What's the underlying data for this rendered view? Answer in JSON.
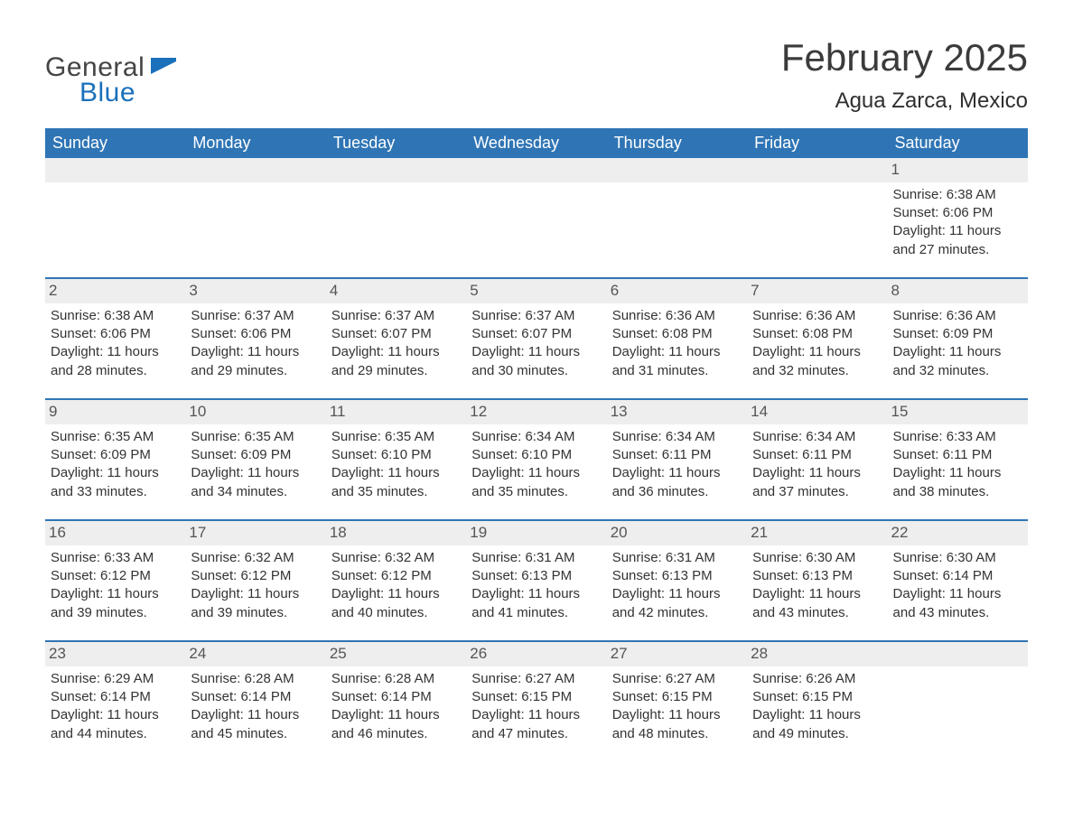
{
  "logo": {
    "word1": "General",
    "word2": "Blue"
  },
  "title": "February 2025",
  "location": "Agua Zarca, Mexico",
  "colors": {
    "header_bg": "#2f75b5",
    "header_text": "#ffffff",
    "daynum_bg": "#eeeeee",
    "body_text": "#333333",
    "logo_blue": "#1a70bb",
    "logo_gray": "#444444",
    "row_border": "#2f75b5"
  },
  "fonts": {
    "title_size_pt": 32,
    "location_size_pt": 18,
    "dayheader_size_pt": 14,
    "body_size_pt": 11
  },
  "day_headers": [
    "Sunday",
    "Monday",
    "Tuesday",
    "Wednesday",
    "Thursday",
    "Friday",
    "Saturday"
  ],
  "weeks": [
    [
      null,
      null,
      null,
      null,
      null,
      null,
      {
        "n": "1",
        "sr": "Sunrise: 6:38 AM",
        "ss": "Sunset: 6:06 PM",
        "dl": "Daylight: 11 hours and 27 minutes."
      }
    ],
    [
      {
        "n": "2",
        "sr": "Sunrise: 6:38 AM",
        "ss": "Sunset: 6:06 PM",
        "dl": "Daylight: 11 hours and 28 minutes."
      },
      {
        "n": "3",
        "sr": "Sunrise: 6:37 AM",
        "ss": "Sunset: 6:06 PM",
        "dl": "Daylight: 11 hours and 29 minutes."
      },
      {
        "n": "4",
        "sr": "Sunrise: 6:37 AM",
        "ss": "Sunset: 6:07 PM",
        "dl": "Daylight: 11 hours and 29 minutes."
      },
      {
        "n": "5",
        "sr": "Sunrise: 6:37 AM",
        "ss": "Sunset: 6:07 PM",
        "dl": "Daylight: 11 hours and 30 minutes."
      },
      {
        "n": "6",
        "sr": "Sunrise: 6:36 AM",
        "ss": "Sunset: 6:08 PM",
        "dl": "Daylight: 11 hours and 31 minutes."
      },
      {
        "n": "7",
        "sr": "Sunrise: 6:36 AM",
        "ss": "Sunset: 6:08 PM",
        "dl": "Daylight: 11 hours and 32 minutes."
      },
      {
        "n": "8",
        "sr": "Sunrise: 6:36 AM",
        "ss": "Sunset: 6:09 PM",
        "dl": "Daylight: 11 hours and 32 minutes."
      }
    ],
    [
      {
        "n": "9",
        "sr": "Sunrise: 6:35 AM",
        "ss": "Sunset: 6:09 PM",
        "dl": "Daylight: 11 hours and 33 minutes."
      },
      {
        "n": "10",
        "sr": "Sunrise: 6:35 AM",
        "ss": "Sunset: 6:09 PM",
        "dl": "Daylight: 11 hours and 34 minutes."
      },
      {
        "n": "11",
        "sr": "Sunrise: 6:35 AM",
        "ss": "Sunset: 6:10 PM",
        "dl": "Daylight: 11 hours and 35 minutes."
      },
      {
        "n": "12",
        "sr": "Sunrise: 6:34 AM",
        "ss": "Sunset: 6:10 PM",
        "dl": "Daylight: 11 hours and 35 minutes."
      },
      {
        "n": "13",
        "sr": "Sunrise: 6:34 AM",
        "ss": "Sunset: 6:11 PM",
        "dl": "Daylight: 11 hours and 36 minutes."
      },
      {
        "n": "14",
        "sr": "Sunrise: 6:34 AM",
        "ss": "Sunset: 6:11 PM",
        "dl": "Daylight: 11 hours and 37 minutes."
      },
      {
        "n": "15",
        "sr": "Sunrise: 6:33 AM",
        "ss": "Sunset: 6:11 PM",
        "dl": "Daylight: 11 hours and 38 minutes."
      }
    ],
    [
      {
        "n": "16",
        "sr": "Sunrise: 6:33 AM",
        "ss": "Sunset: 6:12 PM",
        "dl": "Daylight: 11 hours and 39 minutes."
      },
      {
        "n": "17",
        "sr": "Sunrise: 6:32 AM",
        "ss": "Sunset: 6:12 PM",
        "dl": "Daylight: 11 hours and 39 minutes."
      },
      {
        "n": "18",
        "sr": "Sunrise: 6:32 AM",
        "ss": "Sunset: 6:12 PM",
        "dl": "Daylight: 11 hours and 40 minutes."
      },
      {
        "n": "19",
        "sr": "Sunrise: 6:31 AM",
        "ss": "Sunset: 6:13 PM",
        "dl": "Daylight: 11 hours and 41 minutes."
      },
      {
        "n": "20",
        "sr": "Sunrise: 6:31 AM",
        "ss": "Sunset: 6:13 PM",
        "dl": "Daylight: 11 hours and 42 minutes."
      },
      {
        "n": "21",
        "sr": "Sunrise: 6:30 AM",
        "ss": "Sunset: 6:13 PM",
        "dl": "Daylight: 11 hours and 43 minutes."
      },
      {
        "n": "22",
        "sr": "Sunrise: 6:30 AM",
        "ss": "Sunset: 6:14 PM",
        "dl": "Daylight: 11 hours and 43 minutes."
      }
    ],
    [
      {
        "n": "23",
        "sr": "Sunrise: 6:29 AM",
        "ss": "Sunset: 6:14 PM",
        "dl": "Daylight: 11 hours and 44 minutes."
      },
      {
        "n": "24",
        "sr": "Sunrise: 6:28 AM",
        "ss": "Sunset: 6:14 PM",
        "dl": "Daylight: 11 hours and 45 minutes."
      },
      {
        "n": "25",
        "sr": "Sunrise: 6:28 AM",
        "ss": "Sunset: 6:14 PM",
        "dl": "Daylight: 11 hours and 46 minutes."
      },
      {
        "n": "26",
        "sr": "Sunrise: 6:27 AM",
        "ss": "Sunset: 6:15 PM",
        "dl": "Daylight: 11 hours and 47 minutes."
      },
      {
        "n": "27",
        "sr": "Sunrise: 6:27 AM",
        "ss": "Sunset: 6:15 PM",
        "dl": "Daylight: 11 hours and 48 minutes."
      },
      {
        "n": "28",
        "sr": "Sunrise: 6:26 AM",
        "ss": "Sunset: 6:15 PM",
        "dl": "Daylight: 11 hours and 49 minutes."
      },
      null
    ]
  ]
}
